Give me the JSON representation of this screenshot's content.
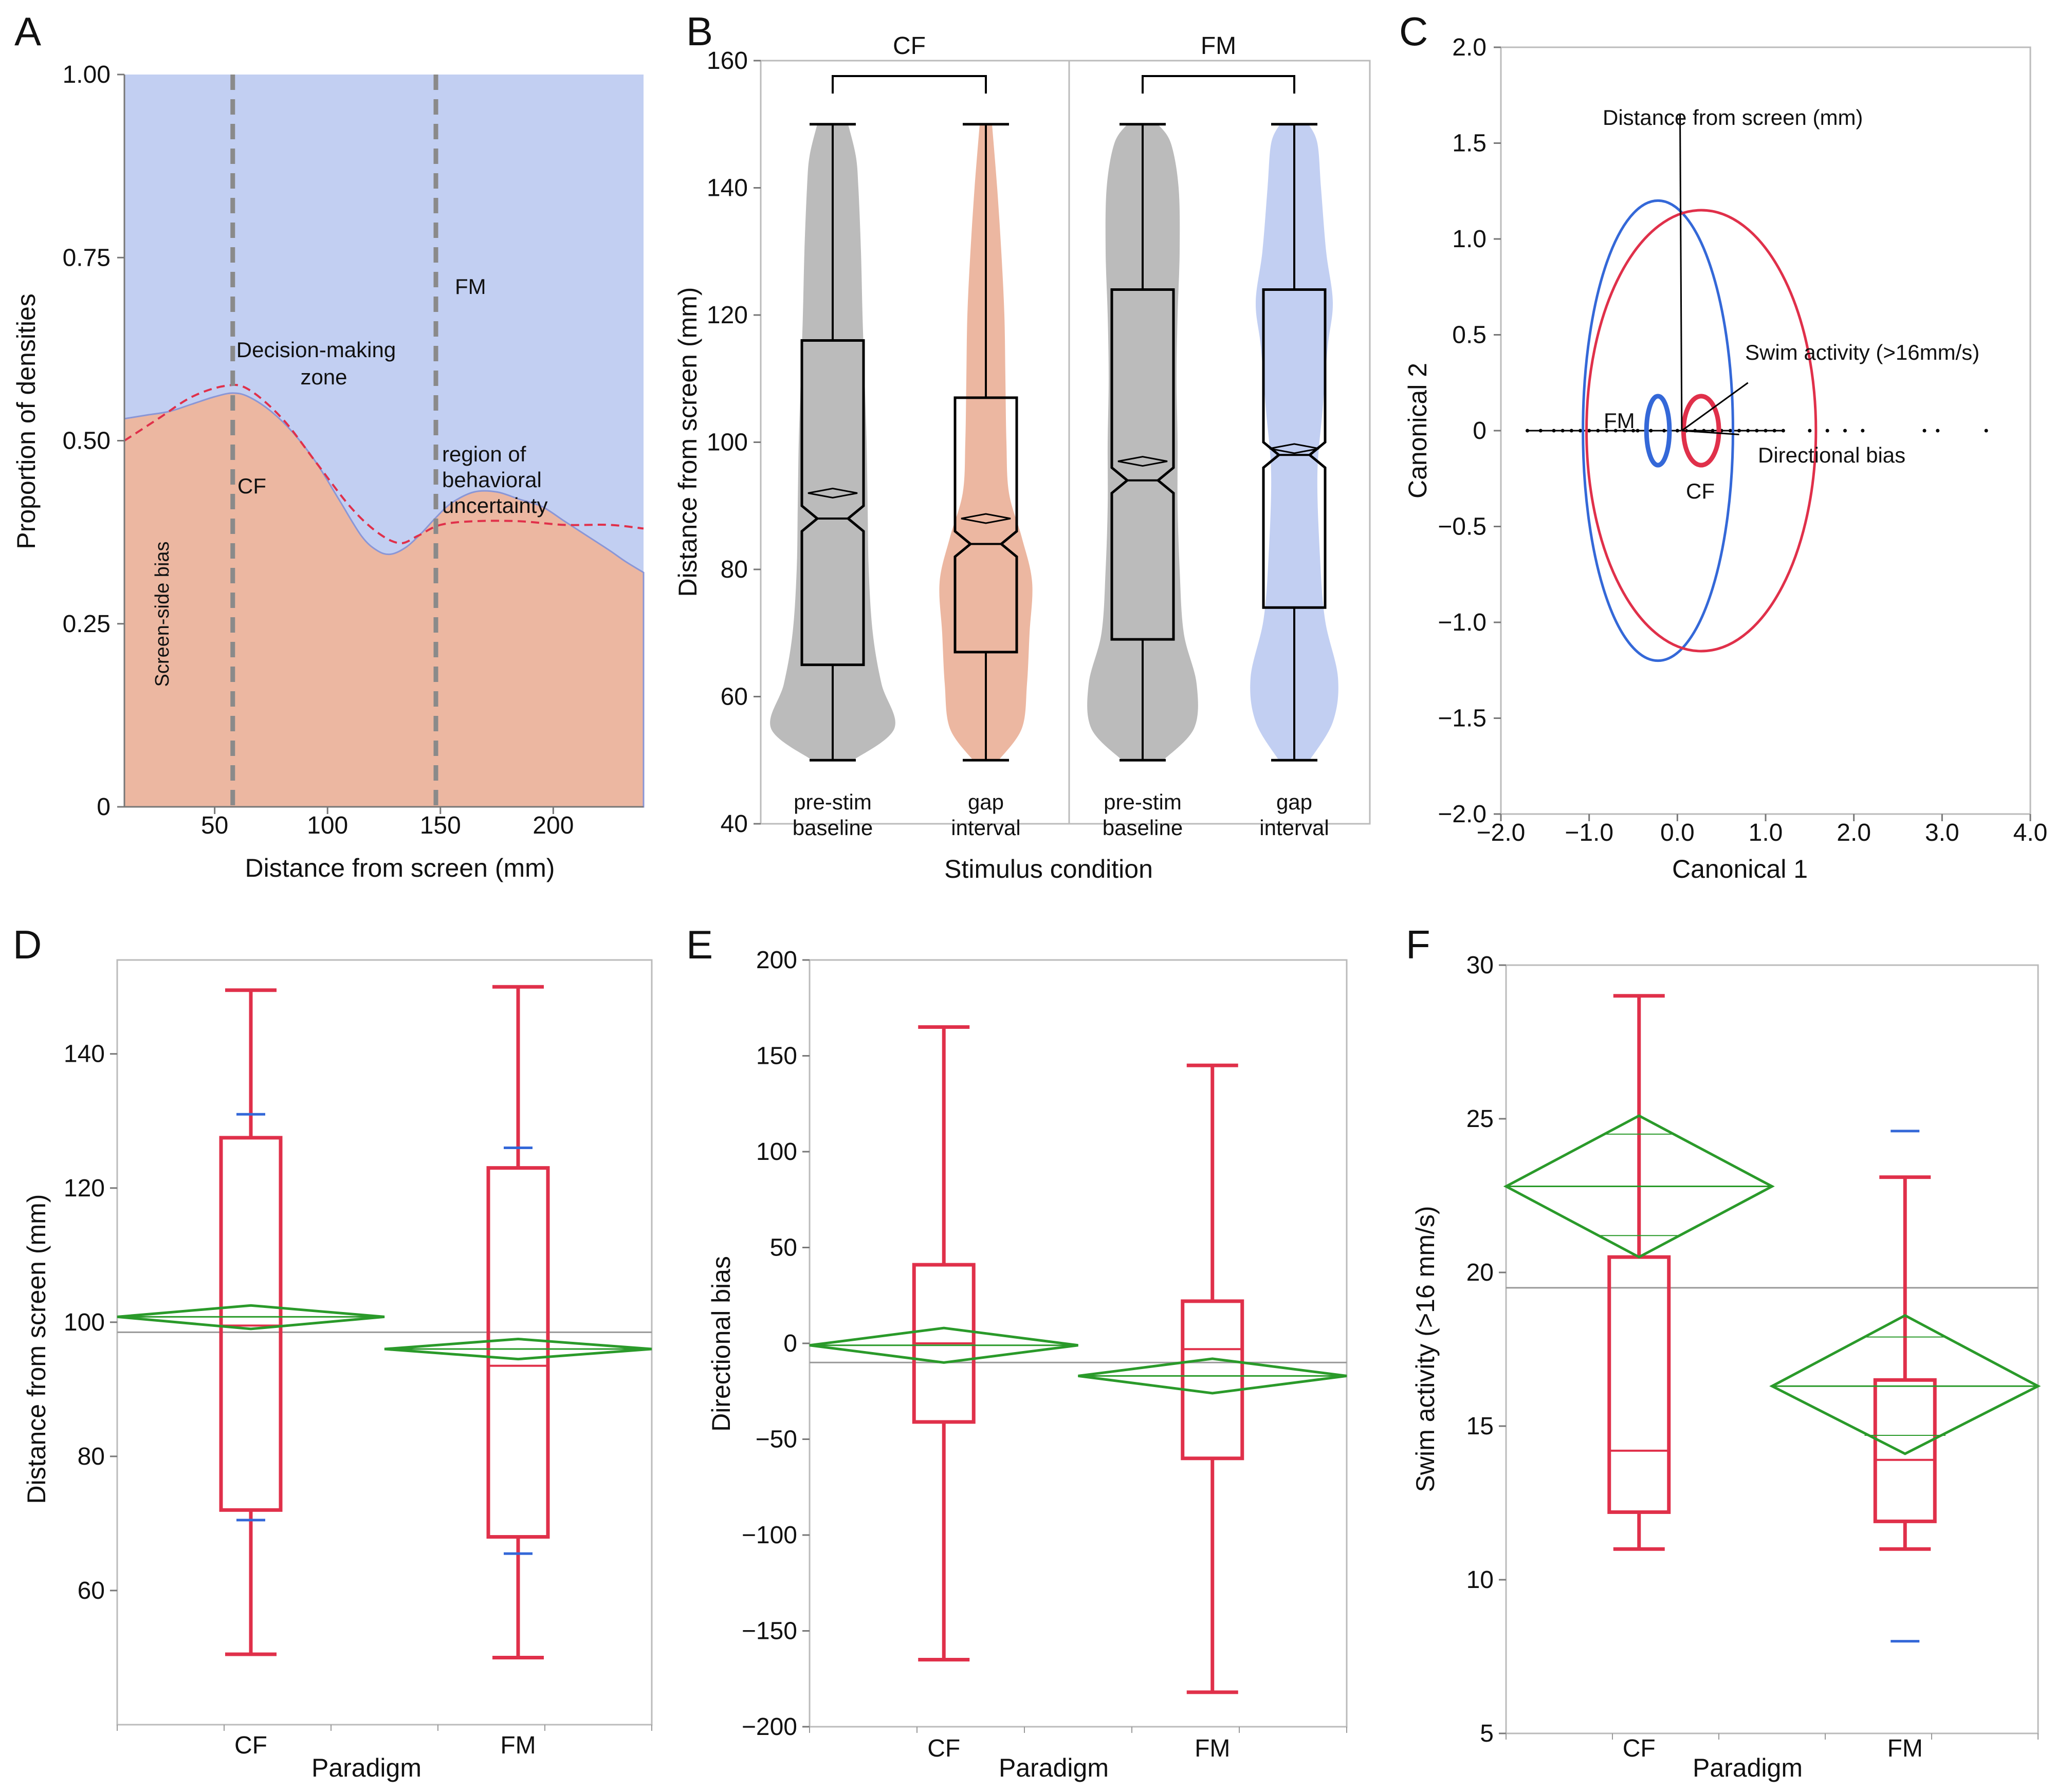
{
  "colors": {
    "cf_fill": "#ecb7a1",
    "fm_fill": "#c2cff2",
    "gray_violin": "#bbbbbb",
    "red": "#e0304a",
    "green": "#2a9a2a",
    "blue": "#3468d8",
    "dashed_gray": "#8a8a8a",
    "dashed_red": "#e0304a"
  },
  "panels": {
    "A": {
      "letter": "A"
    },
    "B": {
      "letter": "B"
    },
    "C": {
      "letter": "C"
    },
    "D": {
      "letter": "D"
    },
    "E": {
      "letter": "E"
    },
    "F": {
      "letter": "F"
    }
  },
  "chart_data": [
    {
      "panel": "A",
      "type": "area",
      "xlabel": "Distance from screen (mm)",
      "ylabel": "Proportion of densities",
      "xlim": [
        10,
        240
      ],
      "ylim": [
        0,
        1
      ],
      "xticks": [
        50,
        100,
        150,
        200
      ],
      "yticks": [
        0,
        0.25,
        0.5,
        0.75,
        1.0
      ],
      "ytick_labels": [
        "0",
        "0.25",
        "0.50",
        "0.75",
        "1.00"
      ],
      "series": [
        {
          "name": "CF",
          "x": [
            10,
            20,
            30,
            40,
            50,
            58,
            65,
            75,
            85,
            95,
            105,
            115,
            122,
            128,
            135,
            142,
            148,
            155,
            165,
            175,
            185,
            195,
            205,
            215,
            225,
            232,
            240
          ],
          "values": [
            0.53,
            0.535,
            0.54,
            0.55,
            0.56,
            0.565,
            0.56,
            0.54,
            0.51,
            0.47,
            0.42,
            0.37,
            0.35,
            0.345,
            0.355,
            0.375,
            0.395,
            0.415,
            0.43,
            0.43,
            0.42,
            0.41,
            0.39,
            0.37,
            0.35,
            0.335,
            0.32
          ]
        },
        {
          "name": "FM",
          "note": "remaining proportion above CF, up to 1.00"
        }
      ],
      "smoothed_line": {
        "name": "dashed fit",
        "x": [
          10,
          25,
          40,
          55,
          65,
          80,
          95,
          110,
          122,
          132,
          140,
          150,
          165,
          185,
          205,
          225,
          240
        ],
        "values": [
          0.5,
          0.53,
          0.56,
          0.575,
          0.57,
          0.53,
          0.47,
          0.41,
          0.375,
          0.36,
          0.37,
          0.385,
          0.39,
          0.39,
          0.385,
          0.385,
          0.38
        ]
      },
      "vlines": [
        58,
        148
      ],
      "labels": {
        "fm": "FM",
        "cf": "CF",
        "decision_1": "Decision-making",
        "decision_2": "zone",
        "region_1": "region of",
        "region_2": "behavioral",
        "region_3": "uncertainty",
        "screen_side": "Screen-side bias"
      }
    },
    {
      "panel": "B",
      "type": "violin",
      "xlabel": "Stimulus condition",
      "ylabel": "Distance from screen (mm)",
      "ylim": [
        40,
        160
      ],
      "yticks": [
        40,
        60,
        80,
        100,
        120,
        140,
        160
      ],
      "groups": [
        {
          "paradigm": "CF",
          "label_1": "pre-stim",
          "label_2": "baseline",
          "min": 50,
          "q1": 65,
          "median": 88,
          "mean": 92,
          "q3": 116,
          "max": 150,
          "notch_lo": 86,
          "notch_hi": 90
        },
        {
          "paradigm": "CF",
          "label_1": "gap",
          "label_2": "interval",
          "min": 50,
          "q1": 67,
          "median": 84,
          "mean": 88,
          "q3": 107,
          "max": 150,
          "notch_lo": 82,
          "notch_hi": 86
        },
        {
          "paradigm": "FM",
          "label_1": "pre-stim",
          "label_2": "baseline",
          "min": 50,
          "q1": 69,
          "median": 94,
          "mean": 97,
          "q3": 124,
          "max": 150,
          "notch_lo": 92,
          "notch_hi": 96
        },
        {
          "paradigm": "FM",
          "label_1": "gap",
          "label_2": "interval",
          "min": 50,
          "q1": 74,
          "median": 98,
          "mean": 99,
          "q3": 124,
          "max": 150,
          "notch_lo": 96,
          "notch_hi": 100
        }
      ],
      "brackets": [
        "CF",
        "FM"
      ]
    },
    {
      "panel": "C",
      "type": "scatter",
      "xlabel": "Canonical 1",
      "ylabel": "Canonical 2",
      "xlim": [
        -2.0,
        4.0
      ],
      "ylim": [
        -2.0,
        2.0
      ],
      "xticks": [
        -2.0,
        -1.0,
        0.0,
        1.0,
        2.0,
        3.0,
        4.0
      ],
      "xtick_labels": [
        "−2.0",
        "−1.0",
        "0.0",
        "1.0",
        "2.0",
        "3.0",
        "4.0"
      ],
      "yticks": [
        -2.0,
        -1.5,
        -1.0,
        -0.5,
        0,
        0.5,
        1.0,
        1.5,
        2.0
      ],
      "ytick_labels": [
        "−2.0",
        "−1.5",
        "−1.0",
        "−0.5",
        "0",
        "0.5",
        "1.0",
        "1.5",
        "2.0"
      ],
      "ellipses": [
        {
          "name": "FM",
          "cx": -0.22,
          "cy": 0.0,
          "rx": 0.85,
          "ry": 1.2,
          "color": "blue"
        },
        {
          "name": "CF",
          "cx": 0.27,
          "cy": 0.0,
          "rx": 1.3,
          "ry": 1.15,
          "color": "red"
        },
        {
          "name": "FM mean",
          "cx": -0.22,
          "cy": 0.0,
          "rx": 0.13,
          "ry": 0.18,
          "color": "blue"
        },
        {
          "name": "CF mean",
          "cx": 0.27,
          "cy": 0.0,
          "rx": 0.2,
          "ry": 0.18,
          "color": "red"
        }
      ],
      "points_x": [
        -1.7,
        -1.55,
        -1.4,
        -1.3,
        -1.2,
        -1.1,
        -1.0,
        -0.9,
        -0.8,
        -0.7,
        -0.6,
        -0.5,
        -0.45,
        -0.3,
        -0.15,
        0.0,
        0.1,
        0.2,
        0.3,
        0.4,
        0.5,
        0.6,
        0.7,
        0.8,
        0.9,
        1.0,
        1.1,
        1.2,
        1.5,
        1.7,
        1.9,
        2.1,
        2.8,
        2.95,
        3.5
      ],
      "vectors": [
        {
          "name": "Distance from screen (mm)",
          "dx": -0.02,
          "dy": 1.65
        },
        {
          "name": "Swim activity (>16mm/s)",
          "dx": 0.75,
          "dy": 0.25
        },
        {
          "name": "Directional bias",
          "dx": 0.65,
          "dy": -0.02
        }
      ],
      "labels": {
        "distance": "Distance from screen (mm)",
        "swim": "Swim activity (>16mm/s)",
        "bias": "Directional bias",
        "fm": "FM",
        "cf": "CF"
      }
    },
    {
      "panel": "D",
      "type": "box",
      "xlabel": "Paradigm",
      "ylabel": "Distance from screen (mm)",
      "ylim": [
        40,
        154
      ],
      "yticks": [
        60,
        80,
        100,
        120,
        140
      ],
      "grand_mean": 98.5,
      "groups": [
        {
          "name": "CF",
          "min": 50.5,
          "q1": 72,
          "median": 99.5,
          "q3": 127.5,
          "max": 149.5,
          "mean": 100.8,
          "ci": [
            99,
            102.5
          ],
          "sd_marks": [
            70.5,
            131
          ]
        },
        {
          "name": "FM",
          "min": 50,
          "q1": 68,
          "median": 93.5,
          "q3": 123,
          "max": 150,
          "mean": 96,
          "ci": [
            94.5,
            97.5
          ],
          "sd_marks": [
            65.5,
            126
          ]
        }
      ]
    },
    {
      "panel": "E",
      "type": "box",
      "xlabel": "Paradigm",
      "ylabel": "Directional bias",
      "ylim": [
        -200,
        200
      ],
      "yticks": [
        -200,
        -150,
        -100,
        -50,
        0,
        50,
        100,
        150,
        200
      ],
      "ytick_labels": [
        "−200",
        "−150",
        "−100",
        "−50",
        "0",
        "50",
        "100",
        "150",
        "200"
      ],
      "grand_mean": -10,
      "groups": [
        {
          "name": "CF",
          "min": -165,
          "q1": -41,
          "median": 0,
          "q3": 41,
          "max": 165,
          "mean": -1,
          "ci": [
            -10,
            8
          ]
        },
        {
          "name": "FM",
          "min": -182,
          "q1": -60,
          "median": -3,
          "q3": 22,
          "max": 145,
          "mean": -17,
          "ci": [
            -26,
            -8
          ]
        }
      ]
    },
    {
      "panel": "F",
      "type": "box",
      "xlabel": "Paradigm",
      "ylabel": "Swim activity (>16 mm/s)",
      "ylim": [
        5,
        30
      ],
      "yticks": [
        5,
        10,
        15,
        20,
        25,
        30
      ],
      "grand_mean": 19.5,
      "groups": [
        {
          "name": "CF",
          "min": 11,
          "q1": 12.2,
          "median": 14.2,
          "q3": 20.5,
          "max": 29,
          "mean": 22.8,
          "ci": [
            20.5,
            25.1
          ],
          "ci_inner": [
            21.2,
            24.5
          ]
        },
        {
          "name": "FM",
          "min": 11,
          "q1": 11.9,
          "median": 13.9,
          "q3": 16.5,
          "max": 23.1,
          "mean": 16.3,
          "ci": [
            14.1,
            18.6
          ],
          "ci_inner": [
            14.7,
            17.9
          ],
          "sd_marks": [
            8,
            24.6
          ]
        }
      ]
    }
  ]
}
